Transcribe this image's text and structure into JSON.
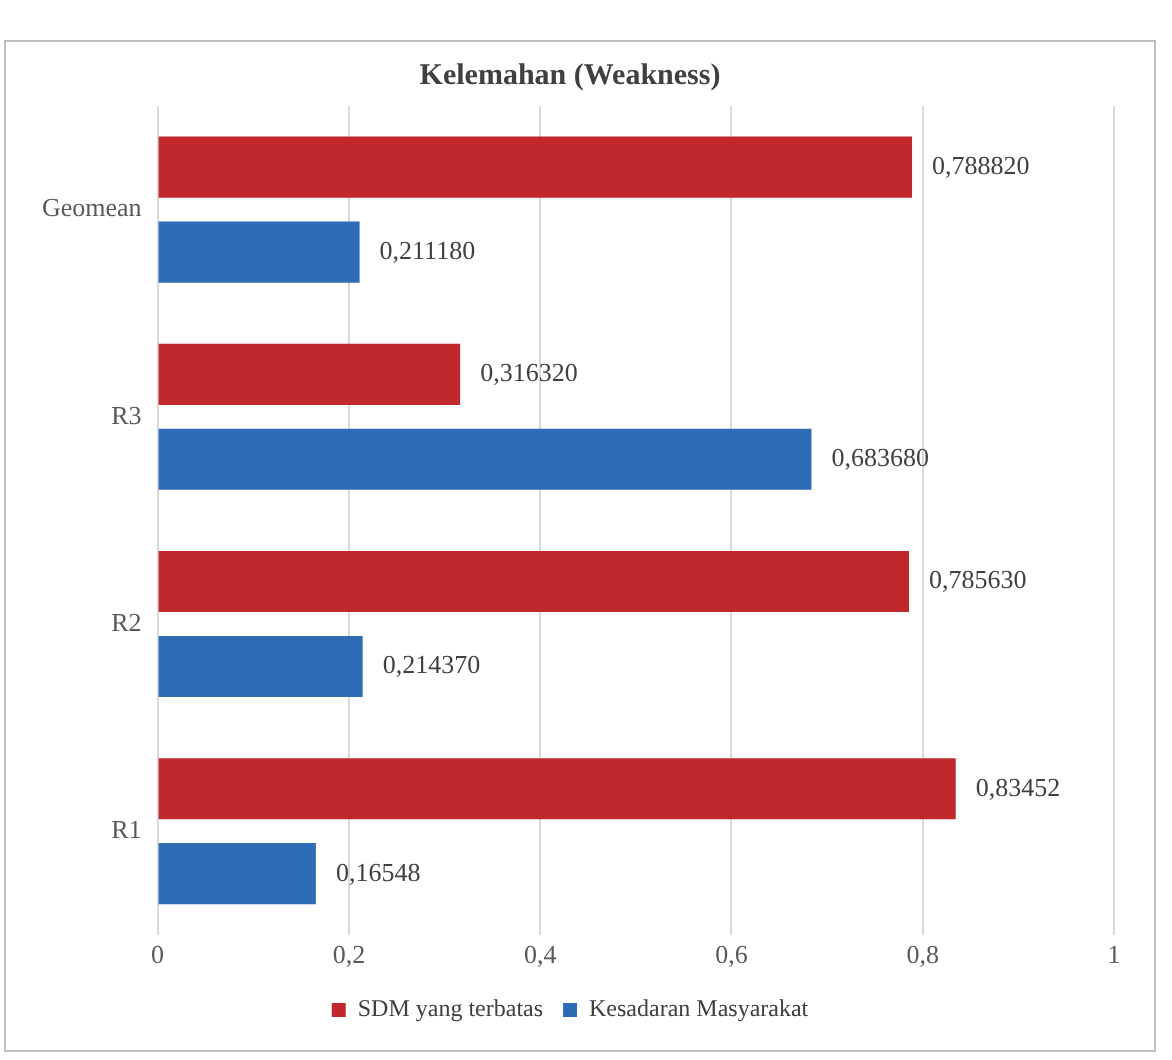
{
  "chart_data": {
    "type": "bar",
    "orientation": "horizontal",
    "title": "Kelemahan (Weakness)",
    "categories": [
      "Geomean",
      "R3",
      "R2",
      "R1"
    ],
    "series": [
      {
        "name": "SDM yang terbatas",
        "color": "#c0282d",
        "values": [
          0.78882,
          0.31632,
          0.78563,
          0.83452
        ],
        "value_labels": [
          "0,788820",
          "0,316320",
          "0,785630",
          "0,83452"
        ]
      },
      {
        "name": "Kesadaran Masyarakat",
        "color": "#2e6db5",
        "values": [
          0.21118,
          0.68368,
          0.21437,
          0.16548
        ],
        "value_labels": [
          "0,211180",
          "0,683680",
          "0,214370",
          "0,16548"
        ]
      }
    ],
    "xlim": [
      0,
      1
    ],
    "xticks": [
      0,
      {
        "value": 0.2,
        "label": "0,2"
      },
      {
        "value": 0.4,
        "label": "0,4"
      },
      {
        "value": 0.6,
        "label": "0,6"
      },
      {
        "value": 0.8,
        "label": "0,8"
      },
      1
    ],
    "grid": "x",
    "legend": "bottom"
  }
}
